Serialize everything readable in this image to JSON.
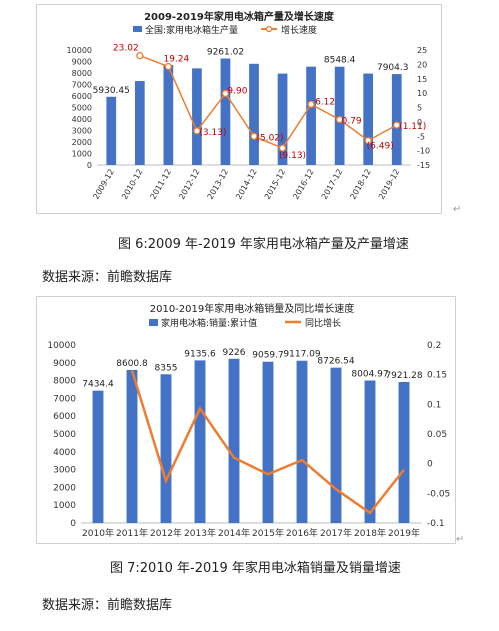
{
  "captions": {
    "fig6": "图 6:2009 年-2019 年家用电冰箱产量及产量增速",
    "fig7": "图 7:2010 年-2019 年家用电冰箱销量及销量增速",
    "source1": "数据来源：前瞻数据库",
    "source2": "数据来源：前瞻数据库",
    "return_mark": "↵"
  },
  "colors": {
    "bar": "#4472C4",
    "line": "#ED7D31",
    "axis": "#bfbfbf",
    "label_red": "#C00000"
  },
  "chart_data": [
    {
      "type": "bar",
      "title": "2009-2019年家用电冰箱产量及增长速度",
      "legend_position": "top",
      "categories": [
        "2009-12",
        "2010-12",
        "2011-12",
        "2012-12",
        "2013-12",
        "2014-12",
        "2015-12",
        "2016-12",
        "2017-12",
        "2018-12",
        "2019-12"
      ],
      "ylim_left": [
        0,
        10000
      ],
      "yticks_left": [
        0,
        1000,
        2000,
        3000,
        4000,
        5000,
        6000,
        7000,
        8000,
        9000,
        10000
      ],
      "ylim_right": [
        -15,
        25
      ],
      "yticks_right": [
        -15,
        -10,
        -5,
        0,
        5,
        10,
        15,
        20,
        25
      ],
      "grid": false,
      "series": [
        {
          "name": "全国:家用电冰箱生产量",
          "type": "bar",
          "axis": "left",
          "values": [
            5930.45,
            7300,
            8700,
            8400,
            9261.02,
            8800,
            7950,
            8550,
            8548.4,
            7950,
            7904.3
          ],
          "data_labels": [
            "5930.45",
            "",
            "",
            "",
            "9261.02",
            "",
            "",
            "",
            "8548.4",
            "",
            "7904.3"
          ]
        },
        {
          "name": "增长速度",
          "type": "line",
          "axis": "right",
          "values": [
            null,
            23.02,
            19.24,
            -3.13,
            9.9,
            -5.02,
            -9.13,
            6.12,
            0.79,
            -6.49,
            -1.11
          ],
          "data_labels": [
            "",
            "23.02",
            "19.24",
            "(3.13)",
            "9.90",
            "(5.02)",
            "(9.13)",
            "6.12",
            "0.79",
            "(6.49)",
            "(1.11)"
          ]
        }
      ]
    },
    {
      "type": "bar",
      "title": "2010-2019年家用电冰箱销量及同比增长速度",
      "legend_position": "top",
      "categories": [
        "2010年",
        "2011年",
        "2012年",
        "2013年",
        "2014年",
        "2015年",
        "2016年",
        "2017年",
        "2018年",
        "2019年"
      ],
      "ylim_left": [
        0,
        10000
      ],
      "yticks_left": [
        0,
        1000,
        2000,
        3000,
        4000,
        5000,
        6000,
        7000,
        8000,
        9000,
        10000
      ],
      "ylim_right": [
        -0.1,
        0.2
      ],
      "yticks_right": [
        "-0.1",
        "-0.05",
        "0",
        "0.05",
        "0.1",
        "0.15",
        "0.2"
      ],
      "grid": false,
      "series": [
        {
          "name": "家用电冰箱:销量:累计值",
          "type": "bar",
          "axis": "left",
          "values": [
            7434.4,
            8600.8,
            8355,
            9135.6,
            9226,
            9059.7,
            9117.09,
            8726.54,
            8004.97,
            7921.28
          ],
          "data_labels": [
            "7434.4",
            "8600.8",
            "8355",
            "9135.6",
            "9226",
            "9059.7",
            "9117.09",
            "8726.54",
            "8004.97",
            "7921.28"
          ]
        },
        {
          "name": "同比增长",
          "type": "line",
          "axis": "right",
          "values": [
            null,
            0.157,
            -0.029,
            0.093,
            0.01,
            -0.018,
            0.006,
            -0.043,
            -0.083,
            -0.01
          ]
        }
      ]
    }
  ]
}
